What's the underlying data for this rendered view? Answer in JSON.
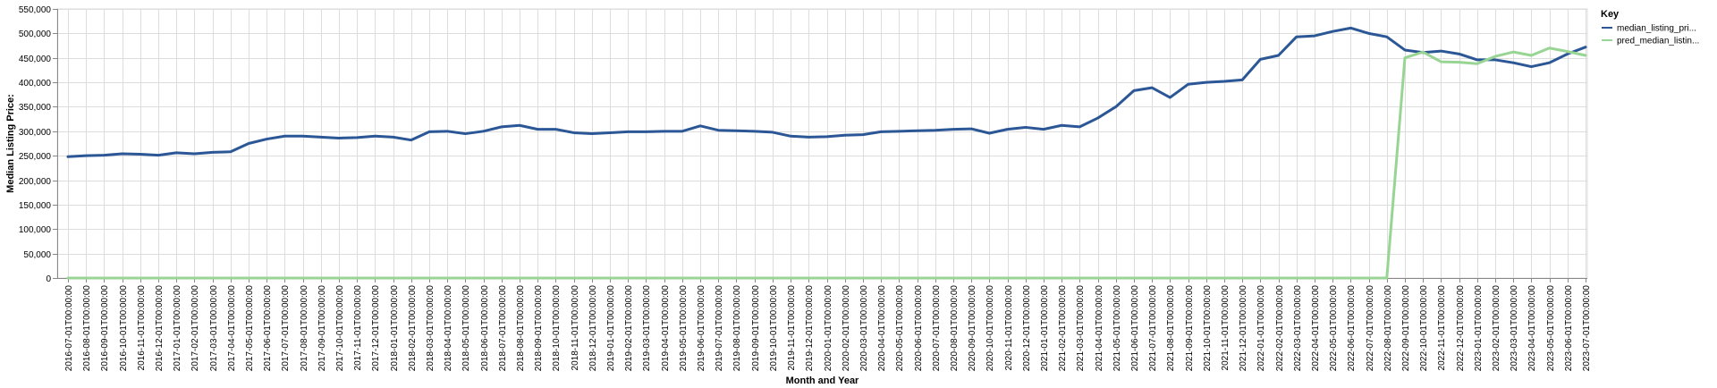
{
  "chart_data": {
    "type": "line",
    "xlabel": "Month and Year",
    "ylabel": "Median Listing Price:",
    "ylim": [
      0,
      550000
    ],
    "yticks": [
      0,
      50000,
      100000,
      150000,
      200000,
      250000,
      300000,
      350000,
      400000,
      450000,
      500000,
      550000
    ],
    "ytick_labels": [
      "0",
      "50,000",
      "100,000",
      "150,000",
      "200,000",
      "250,000",
      "300,000",
      "350,000",
      "400,000",
      "450,000",
      "500,000",
      "550,000"
    ],
    "grid": true,
    "legend_position": "top-right",
    "legend_title": "Key",
    "x": [
      "2016-07-01T00:00:00",
      "2016-08-01T00:00:00",
      "2016-09-01T00:00:00",
      "2016-10-01T00:00:00",
      "2016-11-01T00:00:00",
      "2016-12-01T00:00:00",
      "2017-01-01T00:00:00",
      "2017-02-01T00:00:00",
      "2017-03-01T00:00:00",
      "2017-04-01T00:00:00",
      "2017-05-01T00:00:00",
      "2017-06-01T00:00:00",
      "2017-07-01T00:00:00",
      "2017-08-01T00:00:00",
      "2017-09-01T00:00:00",
      "2017-10-01T00:00:00",
      "2017-11-01T00:00:00",
      "2017-12-01T00:00:00",
      "2018-01-01T00:00:00",
      "2018-02-01T00:00:00",
      "2018-03-01T00:00:00",
      "2018-04-01T00:00:00",
      "2018-05-01T00:00:00",
      "2018-06-01T00:00:00",
      "2018-07-01T00:00:00",
      "2018-08-01T00:00:00",
      "2018-09-01T00:00:00",
      "2018-10-01T00:00:00",
      "2018-11-01T00:00:00",
      "2018-12-01T00:00:00",
      "2019-01-01T00:00:00",
      "2019-02-01T00:00:00",
      "2019-03-01T00:00:00",
      "2019-04-01T00:00:00",
      "2019-05-01T00:00:00",
      "2019-06-01T00:00:00",
      "2019-07-01T00:00:00",
      "2019-08-01T00:00:00",
      "2019-09-01T00:00:00",
      "2019-10-01T00:00:00",
      "2019-11-01T00:00:00",
      "2019-12-01T00:00:00",
      "2020-01-01T00:00:00",
      "2020-02-01T00:00:00",
      "2020-03-01T00:00:00",
      "2020-04-01T00:00:00",
      "2020-05-01T00:00:00",
      "2020-06-01T00:00:00",
      "2020-07-01T00:00:00",
      "2020-08-01T00:00:00",
      "2020-09-01T00:00:00",
      "2020-10-01T00:00:00",
      "2020-11-01T00:00:00",
      "2020-12-01T00:00:00",
      "2021-01-01T00:00:00",
      "2021-02-01T00:00:00",
      "2021-03-01T00:00:00",
      "2021-04-01T00:00:00",
      "2021-05-01T00:00:00",
      "2021-06-01T00:00:00",
      "2021-07-01T00:00:00",
      "2021-08-01T00:00:00",
      "2021-09-01T00:00:00",
      "2021-10-01T00:00:00",
      "2021-11-01T00:00:00",
      "2021-12-01T00:00:00",
      "2022-01-01T00:00:00",
      "2022-02-01T00:00:00",
      "2022-03-01T00:00:00",
      "2022-04-01T00:00:00",
      "2022-05-01T00:00:00",
      "2022-06-01T00:00:00",
      "2022-07-01T00:00:00",
      "2022-08-01T00:00:00",
      "2022-09-01T00:00:00",
      "2022-10-01T00:00:00",
      "2022-11-01T00:00:00",
      "2022-12-01T00:00:00",
      "2023-01-01T00:00:00",
      "2023-02-01T00:00:00",
      "2023-03-01T00:00:00",
      "2023-04-01T00:00:00",
      "2023-05-01T00:00:00",
      "2023-06-01T00:00:00",
      "2023-07-01T00:00:00"
    ],
    "series": [
      {
        "name": "median_listing_pri...",
        "color": "#2c5796",
        "values": [
          248000,
          250000,
          251000,
          254000,
          253000,
          251000,
          256000,
          254000,
          257000,
          258000,
          275000,
          284000,
          290000,
          290000,
          288000,
          286000,
          287000,
          290000,
          288000,
          282000,
          299000,
          300000,
          295000,
          300000,
          309000,
          312000,
          304000,
          304000,
          297000,
          295000,
          297000,
          299000,
          299000,
          300000,
          300000,
          311000,
          302000,
          301000,
          300000,
          298000,
          290000,
          288000,
          289000,
          292000,
          293000,
          299000,
          300000,
          301000,
          302000,
          304000,
          305000,
          296000,
          304000,
          308000,
          304000,
          312000,
          309000,
          327000,
          350000,
          383000,
          389000,
          369000,
          396000,
          400000,
          402000,
          405000,
          447000,
          455000,
          493000,
          495000,
          504000,
          511000,
          500000,
          493000,
          466000,
          461000,
          464000,
          458000,
          446000,
          446000,
          440000,
          432000,
          440000,
          458000,
          472000
        ]
      },
      {
        "name": "pred_median_listin...",
        "color": "#98d594",
        "values": [
          0,
          0,
          0,
          0,
          0,
          0,
          0,
          0,
          0,
          0,
          0,
          0,
          0,
          0,
          0,
          0,
          0,
          0,
          0,
          0,
          0,
          0,
          0,
          0,
          0,
          0,
          0,
          0,
          0,
          0,
          0,
          0,
          0,
          0,
          0,
          0,
          0,
          0,
          0,
          0,
          0,
          0,
          0,
          0,
          0,
          0,
          0,
          0,
          0,
          0,
          0,
          0,
          0,
          0,
          0,
          0,
          0,
          0,
          0,
          0,
          0,
          0,
          0,
          0,
          0,
          0,
          0,
          0,
          0,
          0,
          0,
          0,
          0,
          0,
          450000,
          462000,
          442000,
          441000,
          438000,
          453000,
          462000,
          455000,
          470000,
          463000,
          455000
        ]
      }
    ]
  }
}
